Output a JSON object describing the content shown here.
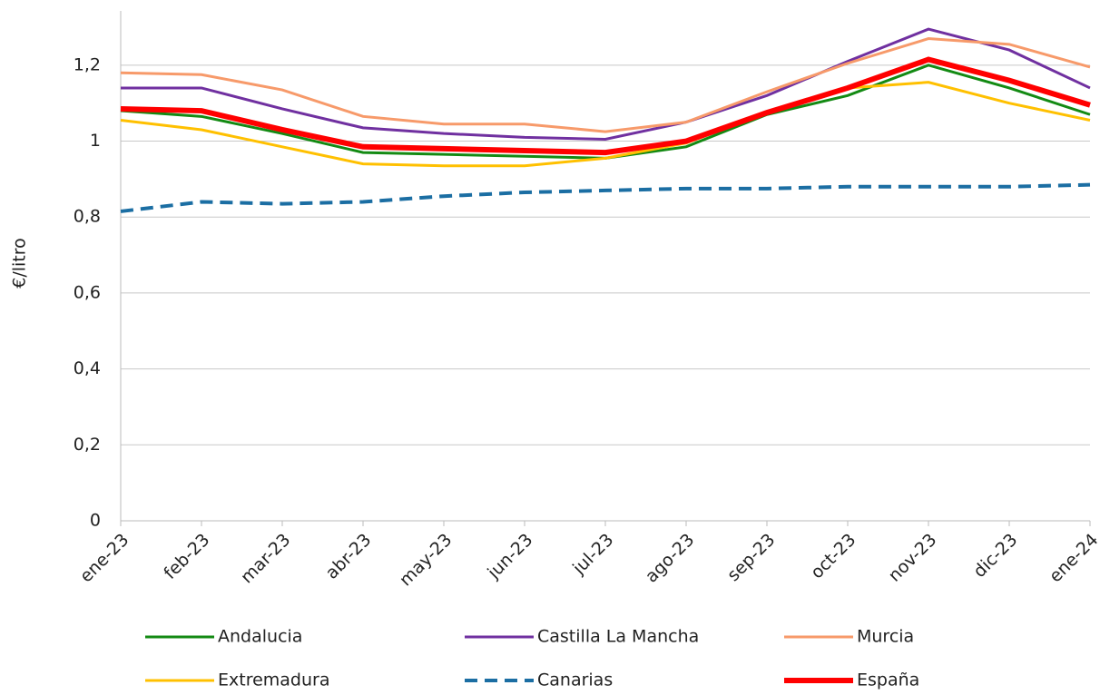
{
  "chart_data": {
    "type": "line",
    "y_label": "€/litro",
    "categories": [
      "ene-23",
      "feb-23",
      "mar-23",
      "abr-23",
      "may-23",
      "jun-23",
      "jul-23",
      "ago-23",
      "sep-23",
      "oct-23",
      "nov-23",
      "dic-23",
      "ene-24"
    ],
    "series": [
      {
        "name": "Andalucia",
        "color": "#138a13",
        "linewidth": 3,
        "linestyle": "solid",
        "values": [
          1.08,
          1.065,
          1.02,
          0.97,
          0.965,
          0.96,
          0.955,
          0.985,
          1.07,
          1.12,
          1.2,
          1.14,
          1.07
        ]
      },
      {
        "name": "Castilla La Mancha",
        "color": "#7030a0",
        "linewidth": 3,
        "linestyle": "solid",
        "values": [
          1.14,
          1.14,
          1.085,
          1.035,
          1.02,
          1.01,
          1.005,
          1.05,
          1.12,
          1.21,
          1.295,
          1.24,
          1.14
        ]
      },
      {
        "name": "Murcia",
        "color": "#f79a6a",
        "linewidth": 3,
        "linestyle": "solid",
        "values": [
          1.18,
          1.175,
          1.135,
          1.065,
          1.045,
          1.045,
          1.025,
          1.05,
          1.13,
          1.205,
          1.27,
          1.255,
          1.195
        ]
      },
      {
        "name": "Extremadura",
        "color": "#ffc000",
        "linewidth": 3,
        "linestyle": "solid",
        "values": [
          1.055,
          1.03,
          0.985,
          0.94,
          0.935,
          0.935,
          0.955,
          0.995,
          1.075,
          1.14,
          1.155,
          1.1,
          1.055
        ]
      },
      {
        "name": "Canarias",
        "color": "#1b6ea3",
        "linewidth": 4,
        "linestyle": "dashed",
        "values": [
          0.815,
          0.84,
          0.835,
          0.84,
          0.855,
          0.865,
          0.87,
          0.875,
          0.875,
          0.88,
          0.88,
          0.88,
          0.885
        ]
      },
      {
        "name": "España",
        "color": "#ff0000",
        "linewidth": 6,
        "linestyle": "solid",
        "values": [
          1.085,
          1.08,
          1.03,
          0.985,
          0.98,
          0.975,
          0.97,
          1.0,
          1.075,
          1.14,
          1.215,
          1.16,
          1.095
        ]
      }
    ],
    "ylim": [
      0,
      1.343
    ],
    "yticks": [
      0,
      {
        "value": 0.2,
        "label": "0,2"
      },
      {
        "value": 0.4,
        "label": "0,4"
      },
      {
        "value": 0.6,
        "label": "0,6"
      },
      {
        "value": 0.8,
        "label": "0,8"
      },
      1,
      {
        "value": 1.2,
        "label": "1,2"
      }
    ],
    "grid": true
  }
}
